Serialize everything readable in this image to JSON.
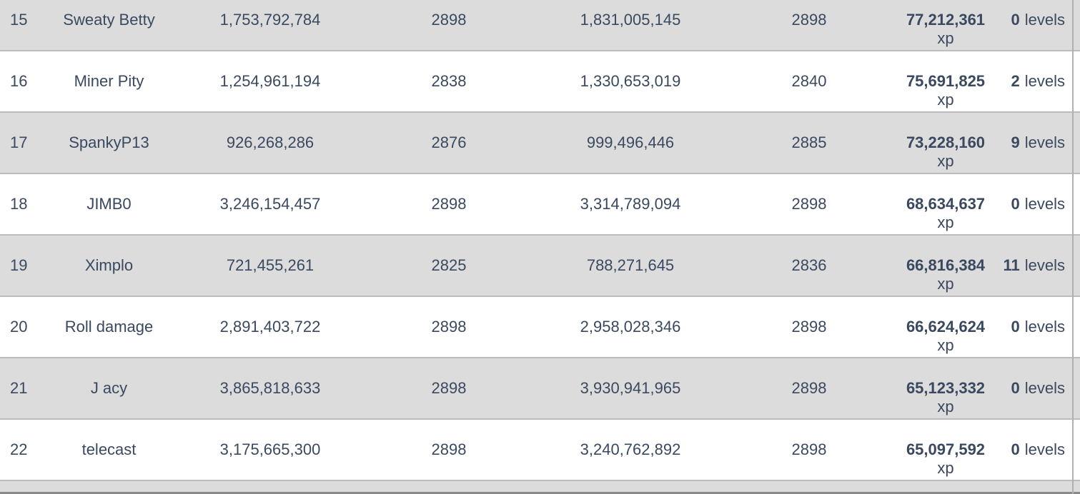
{
  "table": {
    "xp_unit": "xp",
    "levels_unit": "levels",
    "rows": [
      {
        "rank": "15",
        "name": "Sweaty Betty",
        "start_xp": "1,753,792,784",
        "start_level": "2898",
        "end_xp": "1,831,005,145",
        "end_level": "2898",
        "gained_xp": "77,212,361",
        "gained_levels": "0"
      },
      {
        "rank": "16",
        "name": "Miner Pity",
        "start_xp": "1,254,961,194",
        "start_level": "2838",
        "end_xp": "1,330,653,019",
        "end_level": "2840",
        "gained_xp": "75,691,825",
        "gained_levels": "2"
      },
      {
        "rank": "17",
        "name": "SpankyP13",
        "start_xp": "926,268,286",
        "start_level": "2876",
        "end_xp": "999,496,446",
        "end_level": "2885",
        "gained_xp": "73,228,160",
        "gained_levels": "9"
      },
      {
        "rank": "18",
        "name": "JIMB0",
        "start_xp": "3,246,154,457",
        "start_level": "2898",
        "end_xp": "3,314,789,094",
        "end_level": "2898",
        "gained_xp": "68,634,637",
        "gained_levels": "0"
      },
      {
        "rank": "19",
        "name": "Ximplo",
        "start_xp": "721,455,261",
        "start_level": "2825",
        "end_xp": "788,271,645",
        "end_level": "2836",
        "gained_xp": "66,816,384",
        "gained_levels": "11"
      },
      {
        "rank": "20",
        "name": "Roll damage",
        "start_xp": "2,891,403,722",
        "start_level": "2898",
        "end_xp": "2,958,028,346",
        "end_level": "2898",
        "gained_xp": "66,624,624",
        "gained_levels": "0"
      },
      {
        "rank": "21",
        "name": "J acy",
        "start_xp": "3,865,818,633",
        "start_level": "2898",
        "end_xp": "3,930,941,965",
        "end_level": "2898",
        "gained_xp": "65,123,332",
        "gained_levels": "0"
      },
      {
        "rank": "22",
        "name": "telecast",
        "start_xp": "3,175,665,300",
        "start_level": "2898",
        "end_xp": "3,240,762,892",
        "end_level": "2898",
        "gained_xp": "65,097,592",
        "gained_levels": "0"
      }
    ]
  },
  "colors": {
    "text": "#3a4960",
    "row_bg": "#ffffff",
    "row_alt_bg": "#dcdcdc",
    "row_border": "#bdbdbd",
    "right_border": "#b0b0b0",
    "bottom_divider": "#8a8a8a"
  }
}
